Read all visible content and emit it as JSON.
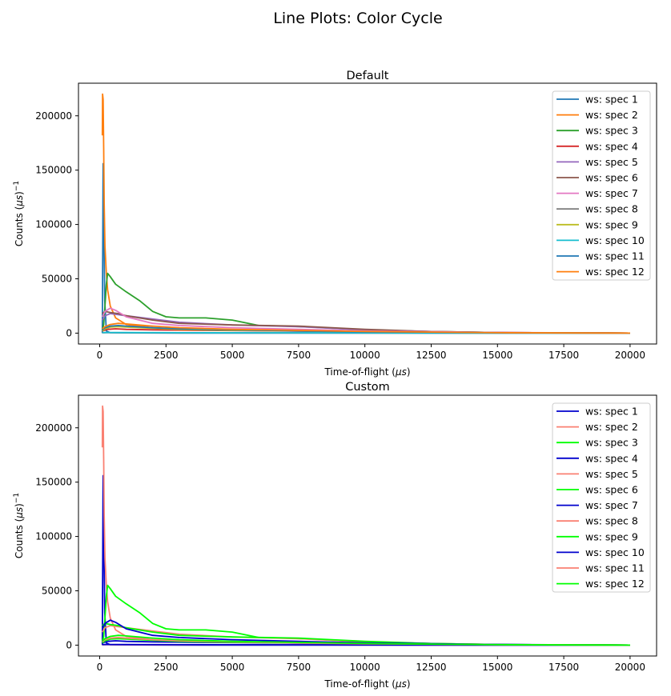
{
  "suptitle": "Line Plots: Color Cycle",
  "chart_data": [
    {
      "type": "line",
      "title": "Default",
      "xlabel": "Time-of-flight ($\\mu s$)",
      "ylabel": "Counts ($\\mu s$)$^{-1}$",
      "xlim": [
        -800,
        21000
      ],
      "ylim": [
        -10000,
        230000
      ],
      "xticks": [
        0,
        2500,
        5000,
        7500,
        10000,
        12500,
        15000,
        17500,
        20000
      ],
      "yticks": [
        0,
        50000,
        100000,
        150000,
        200000
      ],
      "xticklabels": [
        "0",
        "2500",
        "5000",
        "7500",
        "10000",
        "12500",
        "15000",
        "17500",
        "20000"
      ],
      "yticklabels": [
        "0",
        "50000",
        "100000",
        "150000",
        "200000"
      ],
      "grid": false,
      "legend_position": "upper-right",
      "series": [
        {
          "name": "ws: spec 1",
          "color": "#1f77b4",
          "x": [
            100,
            130,
            160,
            190,
            250,
            400,
            1000,
            3000,
            8000,
            15000,
            20000
          ],
          "y": [
            0,
            156000,
            90000,
            30000,
            2000,
            400,
            200,
            100,
            50,
            20,
            0
          ]
        },
        {
          "name": "ws: spec 2",
          "color": "#ff7f0e",
          "x": [
            100,
            110,
            130,
            150,
            170,
            200,
            250,
            300,
            400,
            600,
            1000,
            2000,
            3000,
            5000,
            8000,
            12000,
            16000,
            20000
          ],
          "y": [
            182000,
            220000,
            215000,
            170000,
            120000,
            80000,
            55000,
            40000,
            25000,
            14000,
            8000,
            5000,
            4000,
            3000,
            2000,
            1000,
            300,
            0
          ]
        },
        {
          "name": "ws: spec 3",
          "color": "#2ca02c",
          "x": [
            100,
            150,
            200,
            250,
            300,
            400,
            600,
            1000,
            1500,
            2000,
            2500,
            3000,
            4000,
            5000,
            6000,
            7000,
            8000,
            10000,
            12500,
            15000,
            20000
          ],
          "y": [
            3000,
            8000,
            25000,
            45000,
            55000,
            52000,
            45000,
            38000,
            30000,
            20000,
            15000,
            14000,
            14000,
            12000,
            7000,
            6500,
            5500,
            3000,
            1500,
            500,
            0
          ]
        },
        {
          "name": "ws: spec 4",
          "color": "#d62728",
          "x": [
            100,
            300,
            600,
            1000,
            2000,
            4000,
            7000,
            10000,
            15000,
            20000
          ],
          "y": [
            2000,
            3500,
            4000,
            3500,
            3000,
            2500,
            2000,
            1200,
            500,
            0
          ]
        },
        {
          "name": "ws: spec 5",
          "color": "#9467bd",
          "x": [
            100,
            200,
            400,
            700,
            1000,
            2000,
            3000,
            5000,
            7500,
            10000,
            12500,
            15000,
            20000
          ],
          "y": [
            12000,
            16000,
            18000,
            17000,
            16000,
            13000,
            10000,
            7500,
            6000,
            3000,
            1500,
            500,
            0
          ]
        },
        {
          "name": "ws: spec 6",
          "color": "#8c564b",
          "x": [
            100,
            200,
            400,
            700,
            1000,
            2000,
            3000,
            5000,
            7500,
            10000,
            12500,
            15000,
            20000
          ],
          "y": [
            18000,
            20000,
            19000,
            18000,
            16000,
            12000,
            9000,
            7500,
            6500,
            3500,
            1500,
            500,
            0
          ]
        },
        {
          "name": "ws: spec 7",
          "color": "#e377c2",
          "x": [
            100,
            200,
            400,
            600,
            1000,
            2000,
            3000,
            5000,
            7500,
            10000,
            15000,
            20000
          ],
          "y": [
            15000,
            20000,
            23000,
            21000,
            15000,
            9000,
            7000,
            5000,
            3500,
            2000,
            600,
            0
          ]
        },
        {
          "name": "ws: spec 8",
          "color": "#7f7f7f",
          "x": [
            100,
            300,
            1000,
            3000,
            7500,
            10000,
            15000,
            20000
          ],
          "y": [
            300,
            400,
            300,
            250,
            200,
            150,
            50,
            0
          ]
        },
        {
          "name": "ws: spec 9",
          "color": "#bcbd22",
          "x": [
            100,
            200,
            400,
            700,
            1000,
            2000,
            3000,
            5000,
            7500,
            10000,
            15000,
            20000
          ],
          "y": [
            2000,
            4000,
            5500,
            6000,
            5500,
            4500,
            3500,
            2500,
            2000,
            1200,
            400,
            0
          ]
        },
        {
          "name": "ws: spec 10",
          "color": "#17becf",
          "x": [
            100,
            300,
            1000,
            3000,
            7500,
            10000,
            15000,
            20000
          ],
          "y": [
            500,
            600,
            500,
            400,
            300,
            200,
            80,
            0
          ]
        },
        {
          "name": "ws: spec 11",
          "color": "#1f77b4",
          "x": [
            100,
            200,
            400,
            700,
            1000,
            2000,
            3000,
            5000,
            7500,
            10000,
            15000,
            20000
          ],
          "y": [
            3000,
            5000,
            6500,
            7000,
            6500,
            5000,
            4000,
            3000,
            2000,
            1200,
            400,
            0
          ]
        },
        {
          "name": "ws: spec 12",
          "color": "#ff7f0e",
          "x": [
            100,
            200,
            400,
            700,
            1000,
            2000,
            3000,
            5000,
            7500,
            10000,
            15000,
            20000
          ],
          "y": [
            4000,
            6000,
            8000,
            9000,
            8500,
            6500,
            5000,
            3500,
            2500,
            1500,
            400,
            0
          ]
        }
      ]
    },
    {
      "type": "line",
      "title": "Custom",
      "xlabel": "Time-of-flight ($\\mu s$)",
      "ylabel": "Counts ($\\mu s$)$^{-1}$",
      "xlim": [
        -800,
        21000
      ],
      "ylim": [
        -10000,
        230000
      ],
      "xticks": [
        0,
        2500,
        5000,
        7500,
        10000,
        12500,
        15000,
        17500,
        20000
      ],
      "yticks": [
        0,
        50000,
        100000,
        150000,
        200000
      ],
      "xticklabels": [
        "0",
        "2500",
        "5000",
        "7500",
        "10000",
        "12500",
        "15000",
        "17500",
        "20000"
      ],
      "yticklabels": [
        "0",
        "50000",
        "100000",
        "150000",
        "200000"
      ],
      "grid": false,
      "legend_position": "upper-right",
      "series": [
        {
          "name": "ws: spec 1",
          "color": "#0000cd",
          "x": [
            100,
            130,
            160,
            190,
            250,
            400,
            1000,
            3000,
            8000,
            15000,
            20000
          ],
          "y": [
            0,
            156000,
            90000,
            30000,
            2000,
            400,
            200,
            100,
            50,
            20,
            0
          ]
        },
        {
          "name": "ws: spec 2",
          "color": "#fa8072",
          "x": [
            100,
            110,
            130,
            150,
            170,
            200,
            250,
            300,
            400,
            600,
            1000,
            2000,
            3000,
            5000,
            8000,
            12000,
            16000,
            20000
          ],
          "y": [
            182000,
            220000,
            215000,
            170000,
            120000,
            80000,
            55000,
            40000,
            25000,
            14000,
            8000,
            5000,
            4000,
            3000,
            2000,
            1000,
            300,
            0
          ]
        },
        {
          "name": "ws: spec 3",
          "color": "#00ff00",
          "x": [
            100,
            150,
            200,
            250,
            300,
            400,
            600,
            1000,
            1500,
            2000,
            2500,
            3000,
            4000,
            5000,
            6000,
            7000,
            8000,
            10000,
            12500,
            15000,
            20000
          ],
          "y": [
            3000,
            8000,
            25000,
            45000,
            55000,
            52000,
            45000,
            38000,
            30000,
            20000,
            15000,
            14000,
            14000,
            12000,
            7000,
            6500,
            5500,
            3000,
            1500,
            500,
            0
          ]
        },
        {
          "name": "ws: spec 4",
          "color": "#0000cd",
          "x": [
            100,
            300,
            600,
            1000,
            2000,
            4000,
            7000,
            10000,
            15000,
            20000
          ],
          "y": [
            2000,
            3500,
            4000,
            3500,
            3000,
            2500,
            2000,
            1200,
            500,
            0
          ]
        },
        {
          "name": "ws: spec 5",
          "color": "#fa8072",
          "x": [
            100,
            200,
            400,
            700,
            1000,
            2000,
            3000,
            5000,
            7500,
            10000,
            12500,
            15000,
            20000
          ],
          "y": [
            12000,
            16000,
            18000,
            17000,
            16000,
            13000,
            10000,
            7500,
            6000,
            3000,
            1500,
            500,
            0
          ]
        },
        {
          "name": "ws: spec 6",
          "color": "#00ff00",
          "x": [
            100,
            200,
            400,
            700,
            1000,
            2000,
            3000,
            5000,
            7500,
            10000,
            12500,
            15000,
            20000
          ],
          "y": [
            18000,
            20000,
            19000,
            18000,
            16000,
            12000,
            9000,
            7500,
            6500,
            3500,
            1500,
            500,
            0
          ]
        },
        {
          "name": "ws: spec 7",
          "color": "#0000cd",
          "x": [
            100,
            200,
            400,
            600,
            1000,
            2000,
            3000,
            5000,
            7500,
            10000,
            15000,
            20000
          ],
          "y": [
            15000,
            20000,
            23000,
            21000,
            15000,
            9000,
            7000,
            5000,
            3500,
            2000,
            600,
            0
          ]
        },
        {
          "name": "ws: spec 8",
          "color": "#fa8072",
          "x": [
            100,
            300,
            1000,
            3000,
            7500,
            10000,
            15000,
            20000
          ],
          "y": [
            300,
            400,
            300,
            250,
            200,
            150,
            50,
            0
          ]
        },
        {
          "name": "ws: spec 9",
          "color": "#00ff00",
          "x": [
            100,
            200,
            400,
            700,
            1000,
            2000,
            3000,
            5000,
            7500,
            10000,
            15000,
            20000
          ],
          "y": [
            2000,
            4000,
            5500,
            6000,
            5500,
            4500,
            3500,
            2500,
            2000,
            1200,
            400,
            0
          ]
        },
        {
          "name": "ws: spec 10",
          "color": "#0000cd",
          "x": [
            100,
            300,
            1000,
            3000,
            7500,
            10000,
            15000,
            20000
          ],
          "y": [
            500,
            600,
            500,
            400,
            300,
            200,
            80,
            0
          ]
        },
        {
          "name": "ws: spec 11",
          "color": "#fa8072",
          "x": [
            100,
            200,
            400,
            700,
            1000,
            2000,
            3000,
            5000,
            7500,
            10000,
            15000,
            20000
          ],
          "y": [
            3000,
            5000,
            6500,
            7000,
            6500,
            5000,
            4000,
            3000,
            2000,
            1200,
            400,
            0
          ]
        },
        {
          "name": "ws: spec 12",
          "color": "#00ff00",
          "x": [
            100,
            200,
            400,
            700,
            1000,
            2000,
            3000,
            5000,
            7500,
            10000,
            15000,
            20000
          ],
          "y": [
            4000,
            6000,
            8000,
            9000,
            8500,
            6500,
            5000,
            3500,
            2500,
            1500,
            400,
            0
          ]
        }
      ]
    }
  ]
}
